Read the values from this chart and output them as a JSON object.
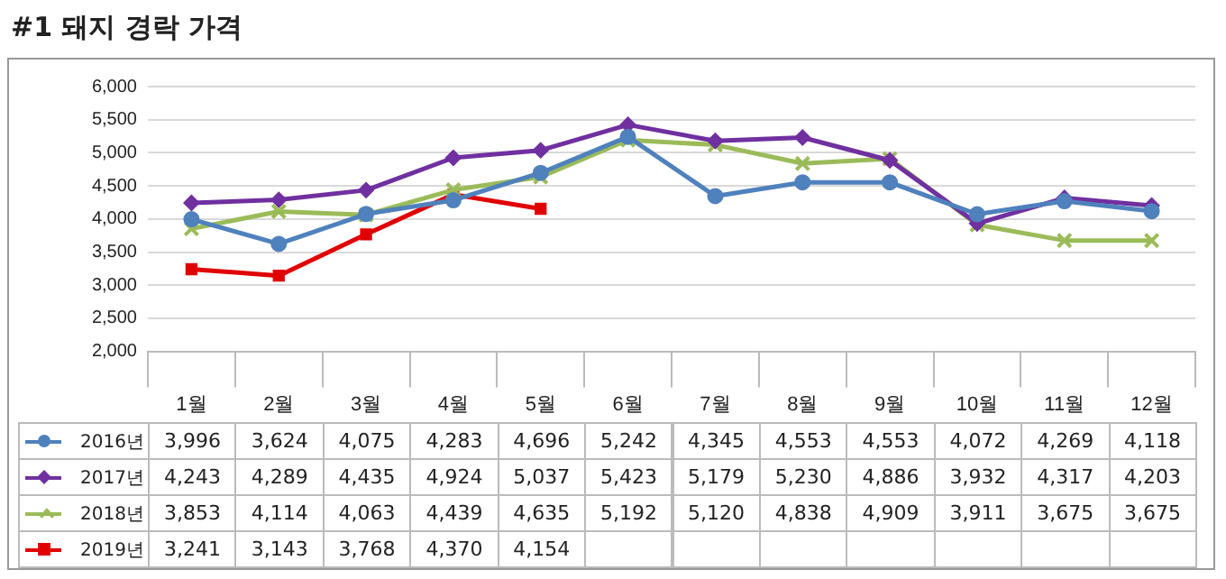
{
  "chart_data": {
    "type": "line",
    "title": "#1 돼지 경락 가격",
    "categories": [
      "1월",
      "2월",
      "3월",
      "4월",
      "5월",
      "6월",
      "7월",
      "8월",
      "9월",
      "10월",
      "11월",
      "12월"
    ],
    "ylim": [
      2000,
      6000
    ],
    "yticks": [
      {
        "value": 2000,
        "label": "2,000"
      },
      {
        "value": 2500,
        "label": "2,500"
      },
      {
        "value": 3000,
        "label": "3,000"
      },
      {
        "value": 3500,
        "label": "3,500"
      },
      {
        "value": 4000,
        "label": "4,000"
      },
      {
        "value": 4500,
        "label": "4,500"
      },
      {
        "value": 5000,
        "label": "5,000"
      },
      {
        "value": 5500,
        "label": "5,500"
      },
      {
        "value": 6000,
        "label": "6,000"
      }
    ],
    "grid": "y",
    "legend": "bottom left",
    "series": [
      {
        "name": "2016년",
        "color": "#4f81bd",
        "marker": "circle",
        "values": [
          3996,
          3624,
          4075,
          4283,
          4696,
          5242,
          4345,
          4553,
          4553,
          4072,
          4269,
          4118
        ],
        "value_labels": [
          "3,996",
          "3,624",
          "4,075",
          "4,283",
          "4,696",
          "5,242",
          "4,345",
          "4,553",
          "4,553",
          "4,072",
          "4,269",
          "4,118"
        ]
      },
      {
        "name": "2017년",
        "color": "#7030a0",
        "marker": "diamond",
        "values": [
          4243,
          4289,
          4435,
          4924,
          5037,
          5423,
          5179,
          5230,
          4886,
          3932,
          4317,
          4203
        ],
        "value_labels": [
          "4,243",
          "4,289",
          "4,435",
          "4,924",
          "5,037",
          "5,423",
          "5,179",
          "5,230",
          "4,886",
          "3,932",
          "4,317",
          "4,203"
        ]
      },
      {
        "name": "2018년",
        "color": "#9bbb59",
        "marker": "cross",
        "values": [
          3853,
          4114,
          4063,
          4439,
          4635,
          5192,
          5120,
          4838,
          4909,
          3911,
          3675,
          3675
        ],
        "value_labels": [
          "3,853",
          "4,114",
          "4,063",
          "4,439",
          "4,635",
          "5,192",
          "5,120",
          "4,838",
          "4,909",
          "3,911",
          "3,675",
          "3,675"
        ]
      },
      {
        "name": "2019년",
        "color": "#e00000",
        "marker": "square",
        "values": [
          3241,
          3143,
          3768,
          4370,
          4154,
          null,
          null,
          null,
          null,
          null,
          null,
          null
        ],
        "value_labels": [
          "3,241",
          "3,143",
          "3,768",
          "4,370",
          "4,154",
          null,
          null,
          null,
          null,
          null,
          null,
          null
        ]
      }
    ]
  }
}
